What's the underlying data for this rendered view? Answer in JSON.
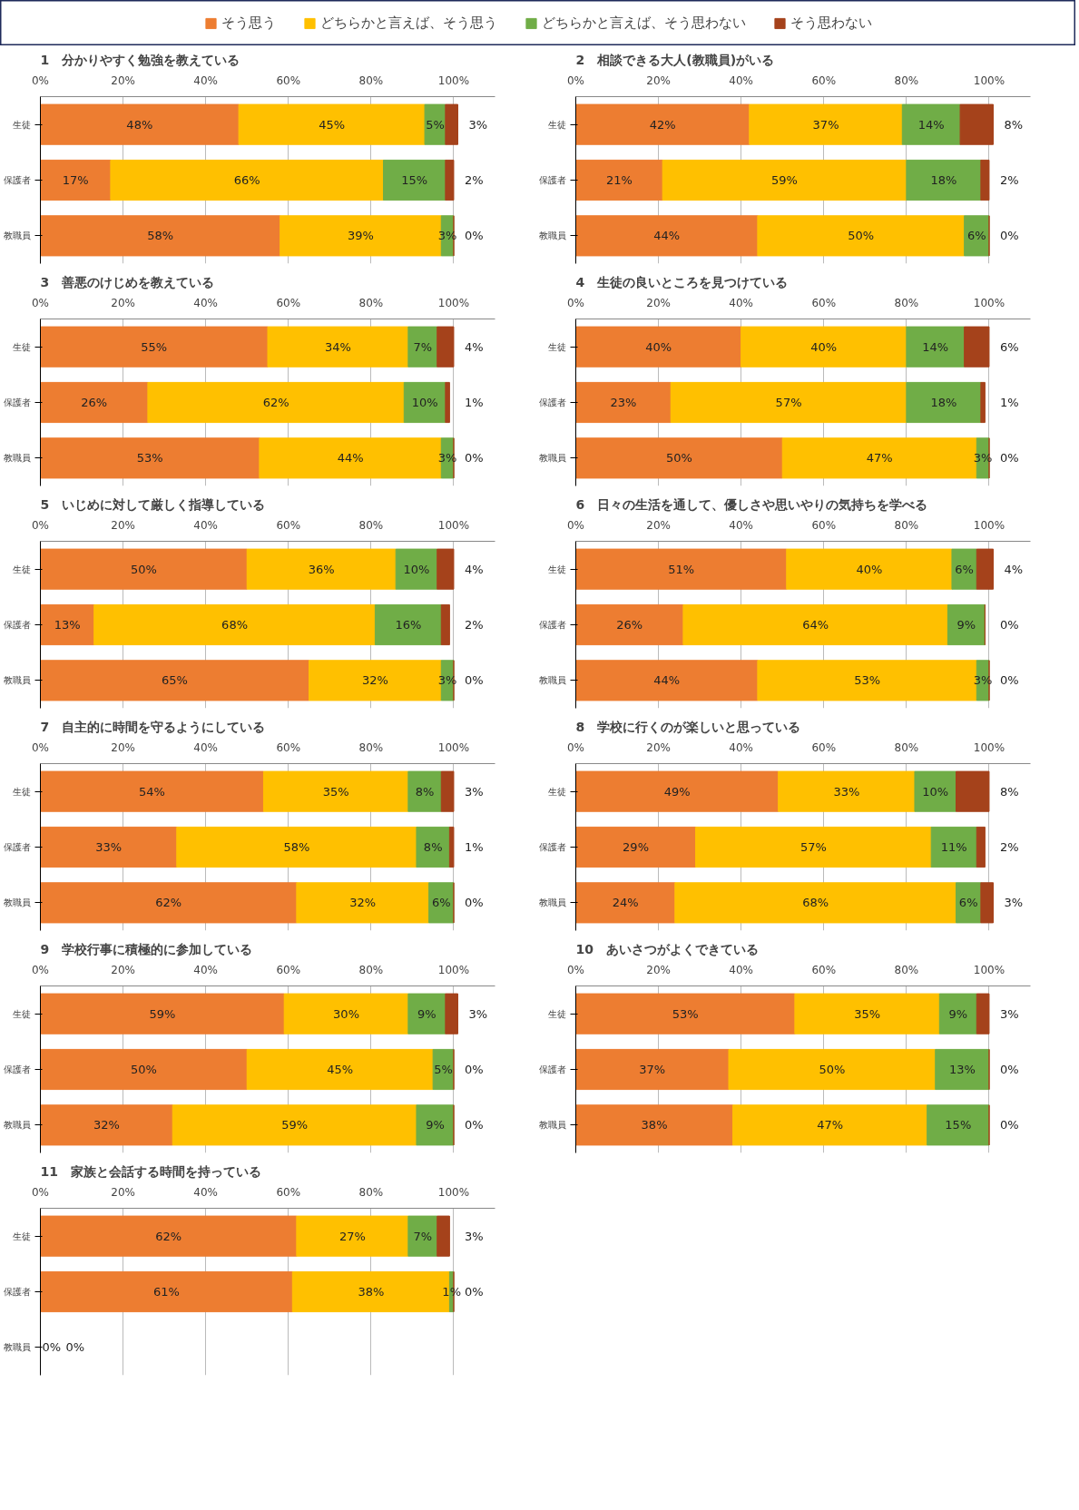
{
  "chart_data": [
    {
      "type": "bar",
      "orientation": "horizontal",
      "stacked": true,
      "legend": "top",
      "grid": "x",
      "title": "1　分かりやすく勉強を教えている",
      "categories": [
        "生徒",
        "保護者",
        "教職員"
      ],
      "xlim": [
        0,
        110
      ],
      "xticks": [
        {
          "value": 0,
          "label": "0%"
        },
        {
          "value": 20,
          "label": "20%"
        },
        {
          "value": 40,
          "label": "40%"
        },
        {
          "value": 60,
          "label": "60%"
        },
        {
          "value": 80,
          "label": "80%"
        },
        {
          "value": 100,
          "label": "100%"
        }
      ],
      "series": [
        {
          "name": "そう思う",
          "color": "#ed7d31",
          "values": [
            48,
            17,
            58
          ],
          "value_labels": [
            "48%",
            "17%",
            "58%"
          ]
        },
        {
          "name": "どちらかと言えば、そう思う",
          "color": "#ffc000",
          "values": [
            45,
            66,
            39
          ],
          "value_labels": [
            "45%",
            "66%",
            "39%"
          ]
        },
        {
          "name": "どちらかと言えば、そう思わない",
          "color": "#70ad47",
          "values": [
            5,
            15,
            3
          ],
          "value_labels": [
            "5%",
            "15%",
            "3%"
          ]
        },
        {
          "name": "そう思わない",
          "color": "#a5421b",
          "values": [
            3,
            2,
            0
          ],
          "value_labels": [
            "3%",
            "2%",
            "0%"
          ]
        }
      ]
    },
    {
      "type": "bar",
      "orientation": "horizontal",
      "stacked": true,
      "grid": "x",
      "title": "2　相談できる大人(教職員)がいる",
      "categories": [
        "生徒",
        "保護者",
        "教職員"
      ],
      "xlim": [
        0,
        110
      ],
      "xticks": [
        {
          "value": 0,
          "label": "0%"
        },
        {
          "value": 20,
          "label": "20%"
        },
        {
          "value": 40,
          "label": "40%"
        },
        {
          "value": 60,
          "label": "60%"
        },
        {
          "value": 80,
          "label": "80%"
        },
        {
          "value": 100,
          "label": "100%"
        }
      ],
      "series": [
        {
          "name": "そう思う",
          "color": "#ed7d31",
          "values": [
            42,
            21,
            44
          ],
          "value_labels": [
            "42%",
            "21%",
            "44%"
          ]
        },
        {
          "name": "どちらかと言えば、そう思う",
          "color": "#ffc000",
          "values": [
            37,
            59,
            50
          ],
          "value_labels": [
            "37%",
            "59%",
            "50%"
          ]
        },
        {
          "name": "どちらかと言えば、そう思わない",
          "color": "#70ad47",
          "values": [
            14,
            18,
            6
          ],
          "value_labels": [
            "14%",
            "18%",
            "6%"
          ]
        },
        {
          "name": "そう思わない",
          "color": "#a5421b",
          "values": [
            8,
            2,
            0
          ],
          "value_labels": [
            "8%",
            "2%",
            "0%"
          ]
        }
      ]
    },
    {
      "type": "bar",
      "orientation": "horizontal",
      "stacked": true,
      "grid": "x",
      "title": "3　善悪のけじめを教えている",
      "categories": [
        "生徒",
        "保護者",
        "教職員"
      ],
      "xlim": [
        0,
        110
      ],
      "xticks": [
        {
          "value": 0,
          "label": "0%"
        },
        {
          "value": 20,
          "label": "20%"
        },
        {
          "value": 40,
          "label": "40%"
        },
        {
          "value": 60,
          "label": "60%"
        },
        {
          "value": 80,
          "label": "80%"
        },
        {
          "value": 100,
          "label": "100%"
        }
      ],
      "series": [
        {
          "name": "そう思う",
          "color": "#ed7d31",
          "values": [
            55,
            26,
            53
          ],
          "value_labels": [
            "55%",
            "26%",
            "53%"
          ]
        },
        {
          "name": "どちらかと言えば、そう思う",
          "color": "#ffc000",
          "values": [
            34,
            62,
            44
          ],
          "value_labels": [
            "34%",
            "62%",
            "44%"
          ]
        },
        {
          "name": "どちらかと言えば、そう思わない",
          "color": "#70ad47",
          "values": [
            7,
            10,
            3
          ],
          "value_labels": [
            "7%",
            "10%",
            "3%"
          ]
        },
        {
          "name": "そう思わない",
          "color": "#a5421b",
          "values": [
            4,
            1,
            0
          ],
          "value_labels": [
            "4%",
            "1%",
            "0%"
          ]
        }
      ]
    },
    {
      "type": "bar",
      "orientation": "horizontal",
      "stacked": true,
      "grid": "x",
      "title": "4　生徒の良いところを見つけている",
      "categories": [
        "生徒",
        "保護者",
        "教職員"
      ],
      "xlim": [
        0,
        110
      ],
      "xticks": [
        {
          "value": 0,
          "label": "0%"
        },
        {
          "value": 20,
          "label": "20%"
        },
        {
          "value": 40,
          "label": "40%"
        },
        {
          "value": 60,
          "label": "60%"
        },
        {
          "value": 80,
          "label": "80%"
        },
        {
          "value": 100,
          "label": "100%"
        }
      ],
      "series": [
        {
          "name": "そう思う",
          "color": "#ed7d31",
          "values": [
            40,
            23,
            50
          ],
          "value_labels": [
            "40%",
            "23%",
            "50%"
          ]
        },
        {
          "name": "どちらかと言えば、そう思う",
          "color": "#ffc000",
          "values": [
            40,
            57,
            47
          ],
          "value_labels": [
            "40%",
            "57%",
            "47%"
          ]
        },
        {
          "name": "どちらかと言えば、そう思わない",
          "color": "#70ad47",
          "values": [
            14,
            18,
            3
          ],
          "value_labels": [
            "14%",
            "18%",
            "3%"
          ]
        },
        {
          "name": "そう思わない",
          "color": "#a5421b",
          "values": [
            6,
            1,
            0
          ],
          "value_labels": [
            "6%",
            "1%",
            "0%"
          ]
        }
      ]
    },
    {
      "type": "bar",
      "orientation": "horizontal",
      "stacked": true,
      "grid": "x",
      "title": "5　いじめに対して厳しく指導している",
      "categories": [
        "生徒",
        "保護者",
        "教職員"
      ],
      "xlim": [
        0,
        110
      ],
      "xticks": [
        {
          "value": 0,
          "label": "0%"
        },
        {
          "value": 20,
          "label": "20%"
        },
        {
          "value": 40,
          "label": "40%"
        },
        {
          "value": 60,
          "label": "60%"
        },
        {
          "value": 80,
          "label": "80%"
        },
        {
          "value": 100,
          "label": "100%"
        }
      ],
      "series": [
        {
          "name": "そう思う",
          "color": "#ed7d31",
          "values": [
            50,
            13,
            65
          ],
          "value_labels": [
            "50%",
            "13%",
            "65%"
          ]
        },
        {
          "name": "どちらかと言えば、そう思う",
          "color": "#ffc000",
          "values": [
            36,
            68,
            32
          ],
          "value_labels": [
            "36%",
            "68%",
            "32%"
          ]
        },
        {
          "name": "どちらかと言えば、そう思わない",
          "color": "#70ad47",
          "values": [
            10,
            16,
            3
          ],
          "value_labels": [
            "10%",
            "16%",
            "3%"
          ]
        },
        {
          "name": "そう思わない",
          "color": "#a5421b",
          "values": [
            4,
            2,
            0
          ],
          "value_labels": [
            "4%",
            "2%",
            "0%"
          ]
        }
      ]
    },
    {
      "type": "bar",
      "orientation": "horizontal",
      "stacked": true,
      "grid": "x",
      "title": "6　日々の生活を通して、優しさや思いやりの気持ちを学べる",
      "categories": [
        "生徒",
        "保護者",
        "教職員"
      ],
      "xlim": [
        0,
        110
      ],
      "xticks": [
        {
          "value": 0,
          "label": "0%"
        },
        {
          "value": 20,
          "label": "20%"
        },
        {
          "value": 40,
          "label": "40%"
        },
        {
          "value": 60,
          "label": "60%"
        },
        {
          "value": 80,
          "label": "80%"
        },
        {
          "value": 100,
          "label": "100%"
        }
      ],
      "series": [
        {
          "name": "そう思う",
          "color": "#ed7d31",
          "values": [
            51,
            26,
            44
          ],
          "value_labels": [
            "51%",
            "26%",
            "44%"
          ]
        },
        {
          "name": "どちらかと言えば、そう思う",
          "color": "#ffc000",
          "values": [
            40,
            64,
            53
          ],
          "value_labels": [
            "40%",
            "64%",
            "53%"
          ]
        },
        {
          "name": "どちらかと言えば、そう思わない",
          "color": "#70ad47",
          "values": [
            6,
            9,
            3
          ],
          "value_labels": [
            "6%",
            "9%",
            "3%"
          ]
        },
        {
          "name": "そう思わない",
          "color": "#a5421b",
          "values": [
            4,
            0,
            0
          ],
          "value_labels": [
            "4%",
            "0%",
            "0%"
          ]
        }
      ]
    },
    {
      "type": "bar",
      "orientation": "horizontal",
      "stacked": true,
      "grid": "x",
      "title": "7　自主的に時間を守るようにしている",
      "categories": [
        "生徒",
        "保護者",
        "教職員"
      ],
      "xlim": [
        0,
        110
      ],
      "xticks": [
        {
          "value": 0,
          "label": "0%"
        },
        {
          "value": 20,
          "label": "20%"
        },
        {
          "value": 40,
          "label": "40%"
        },
        {
          "value": 60,
          "label": "60%"
        },
        {
          "value": 80,
          "label": "80%"
        },
        {
          "value": 100,
          "label": "100%"
        }
      ],
      "series": [
        {
          "name": "そう思う",
          "color": "#ed7d31",
          "values": [
            54,
            33,
            62
          ],
          "value_labels": [
            "54%",
            "33%",
            "62%"
          ]
        },
        {
          "name": "どちらかと言えば、そう思う",
          "color": "#ffc000",
          "values": [
            35,
            58,
            32
          ],
          "value_labels": [
            "35%",
            "58%",
            "32%"
          ]
        },
        {
          "name": "どちらかと言えば、そう思わない",
          "color": "#70ad47",
          "values": [
            8,
            8,
            6
          ],
          "value_labels": [
            "8%",
            "8%",
            "6%"
          ]
        },
        {
          "name": "そう思わない",
          "color": "#a5421b",
          "values": [
            3,
            1,
            0
          ],
          "value_labels": [
            "3%",
            "1%",
            "0%"
          ]
        }
      ]
    },
    {
      "type": "bar",
      "orientation": "horizontal",
      "stacked": true,
      "grid": "x",
      "title": "8　学校に行くのが楽しいと思っている",
      "categories": [
        "生徒",
        "保護者",
        "教職員"
      ],
      "xlim": [
        0,
        110
      ],
      "xticks": [
        {
          "value": 0,
          "label": "0%"
        },
        {
          "value": 20,
          "label": "20%"
        },
        {
          "value": 40,
          "label": "40%"
        },
        {
          "value": 60,
          "label": "60%"
        },
        {
          "value": 80,
          "label": "80%"
        },
        {
          "value": 100,
          "label": "100%"
        }
      ],
      "series": [
        {
          "name": "そう思う",
          "color": "#ed7d31",
          "values": [
            49,
            29,
            24
          ],
          "value_labels": [
            "49%",
            "29%",
            "24%"
          ]
        },
        {
          "name": "どちらかと言えば、そう思う",
          "color": "#ffc000",
          "values": [
            33,
            57,
            68
          ],
          "value_labels": [
            "33%",
            "57%",
            "68%"
          ]
        },
        {
          "name": "どちらかと言えば、そう思わない",
          "color": "#70ad47",
          "values": [
            10,
            11,
            6
          ],
          "value_labels": [
            "10%",
            "11%",
            "6%"
          ]
        },
        {
          "name": "そう思わない",
          "color": "#a5421b",
          "values": [
            8,
            2,
            3
          ],
          "value_labels": [
            "8%",
            "2%",
            "3%"
          ]
        }
      ]
    },
    {
      "type": "bar",
      "orientation": "horizontal",
      "stacked": true,
      "grid": "x",
      "title": "9　学校行事に積極的に参加している",
      "categories": [
        "生徒",
        "保護者",
        "教職員"
      ],
      "xlim": [
        0,
        110
      ],
      "xticks": [
        {
          "value": 0,
          "label": "0%"
        },
        {
          "value": 20,
          "label": "20%"
        },
        {
          "value": 40,
          "label": "40%"
        },
        {
          "value": 60,
          "label": "60%"
        },
        {
          "value": 80,
          "label": "80%"
        },
        {
          "value": 100,
          "label": "100%"
        }
      ],
      "series": [
        {
          "name": "そう思う",
          "color": "#ed7d31",
          "values": [
            59,
            50,
            32
          ],
          "value_labels": [
            "59%",
            "50%",
            "32%"
          ]
        },
        {
          "name": "どちらかと言えば、そう思う",
          "color": "#ffc000",
          "values": [
            30,
            45,
            59
          ],
          "value_labels": [
            "30%",
            "45%",
            "59%"
          ]
        },
        {
          "name": "どちらかと言えば、そう思わない",
          "color": "#70ad47",
          "values": [
            9,
            5,
            9
          ],
          "value_labels": [
            "9%",
            "5%",
            "9%"
          ]
        },
        {
          "name": "そう思わない",
          "color": "#a5421b",
          "values": [
            3,
            0,
            0
          ],
          "value_labels": [
            "3%",
            "0%",
            "0%"
          ]
        }
      ]
    },
    {
      "type": "bar",
      "orientation": "horizontal",
      "stacked": true,
      "grid": "x",
      "title": "10　あいさつがよくできている",
      "categories": [
        "生徒",
        "保護者",
        "教職員"
      ],
      "xlim": [
        0,
        110
      ],
      "xticks": [
        {
          "value": 0,
          "label": "0%"
        },
        {
          "value": 20,
          "label": "20%"
        },
        {
          "value": 40,
          "label": "40%"
        },
        {
          "value": 60,
          "label": "60%"
        },
        {
          "value": 80,
          "label": "80%"
        },
        {
          "value": 100,
          "label": "100%"
        }
      ],
      "series": [
        {
          "name": "そう思う",
          "color": "#ed7d31",
          "values": [
            53,
            37,
            38
          ],
          "value_labels": [
            "53%",
            "37%",
            "38%"
          ]
        },
        {
          "name": "どちらかと言えば、そう思う",
          "color": "#ffc000",
          "values": [
            35,
            50,
            47
          ],
          "value_labels": [
            "35%",
            "50%",
            "47%"
          ]
        },
        {
          "name": "どちらかと言えば、そう思わない",
          "color": "#70ad47",
          "values": [
            9,
            13,
            15
          ],
          "value_labels": [
            "9%",
            "13%",
            "15%"
          ]
        },
        {
          "name": "そう思わない",
          "color": "#a5421b",
          "values": [
            3,
            0,
            0
          ],
          "value_labels": [
            "3%",
            "0%",
            "0%"
          ]
        }
      ]
    },
    {
      "type": "bar",
      "orientation": "horizontal",
      "stacked": true,
      "grid": "x",
      "title": "11　家族と会話する時間を持っている",
      "categories": [
        "生徒",
        "保護者",
        "教職員"
      ],
      "xlim": [
        0,
        110
      ],
      "xticks": [
        {
          "value": 0,
          "label": "0%"
        },
        {
          "value": 20,
          "label": "20%"
        },
        {
          "value": 40,
          "label": "40%"
        },
        {
          "value": 60,
          "label": "60%"
        },
        {
          "value": 80,
          "label": "80%"
        },
        {
          "value": 100,
          "label": "100%"
        }
      ],
      "series": [
        {
          "name": "そう思う",
          "color": "#ed7d31",
          "values": [
            62,
            61,
            0
          ],
          "value_labels": [
            "62%",
            "61%",
            "0%"
          ]
        },
        {
          "name": "どちらかと言えば、そう思う",
          "color": "#ffc000",
          "values": [
            27,
            38,
            0
          ],
          "value_labels": [
            "27%",
            "38%",
            null
          ]
        },
        {
          "name": "どちらかと言えば、そう思わない",
          "color": "#70ad47",
          "values": [
            7,
            1,
            0
          ],
          "value_labels": [
            "7%",
            "1%",
            null
          ]
        },
        {
          "name": "そう思わない",
          "color": "#a5421b",
          "values": [
            3,
            0,
            0
          ],
          "value_labels": [
            "3%",
            "0%",
            "0%"
          ]
        }
      ]
    }
  ]
}
